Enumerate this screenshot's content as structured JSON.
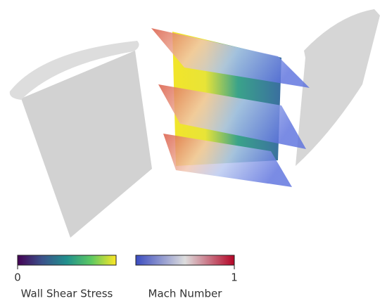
{
  "colorbars": [
    {
      "title": "Wall Shear Stress",
      "min_label": "0"
    },
    {
      "title": "Mach Number",
      "max_label": "1"
    }
  ]
}
